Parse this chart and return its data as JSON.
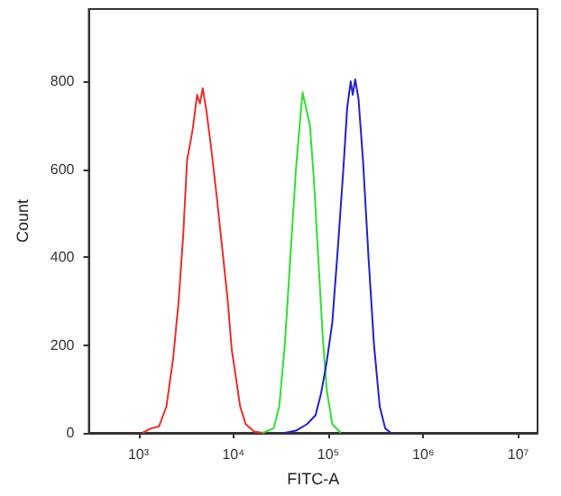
{
  "chart_data": {
    "type": "line",
    "xlabel": "FITC-A",
    "ylabel": "Count",
    "log": "x",
    "marker": "none",
    "line_style": "solid",
    "xlim": [
      300,
      16000000
    ],
    "xticks": [
      {
        "value": 1000,
        "label": "10³"
      },
      {
        "value": 10000,
        "label": "10⁴"
      },
      {
        "value": 100000,
        "label": "10⁵"
      },
      {
        "value": 1000000,
        "label": "10⁶"
      },
      {
        "value": 10000000,
        "label": "10⁷"
      }
    ],
    "ylim": [
      0,
      965
    ],
    "yticks": [
      0,
      200,
      400,
      600,
      800
    ],
    "series": [
      {
        "color": "#e8302a",
        "x": [
          1100,
          1350,
          1650,
          1970,
          2320,
          2650,
          2960,
          3250,
          3720,
          4150,
          4440,
          4750,
          5220,
          5820,
          6660,
          7630,
          8730,
          9600,
          10560,
          11780,
          13470,
          16500,
          20200
        ],
        "values": [
          0,
          10,
          15,
          60,
          170,
          300,
          450,
          620,
          690,
          770,
          750,
          785,
          730,
          650,
          540,
          420,
          300,
          190,
          130,
          60,
          20,
          3,
          0
        ]
      },
      {
        "color": "#33dd33",
        "x": [
          20200,
          26500,
          30400,
          34800,
          39800,
          45600,
          50800,
          53600,
          58200,
          64000,
          70300,
          78300,
          87300,
          95900,
          110000,
          135000
        ],
        "values": [
          0,
          10,
          60,
          200,
          400,
          600,
          720,
          775,
          740,
          700,
          580,
          400,
          220,
          100,
          20,
          0
        ]
      },
      {
        "color": "#2222cc",
        "x": [
          34800,
          45600,
          59700,
          73300,
          83900,
          95900,
          110000,
          126000,
          144000,
          158000,
          172000,
          181000,
          192000,
          208000,
          232000,
          265000,
          303000,
          348000,
          398000,
          456000
        ],
        "values": [
          0,
          5,
          20,
          40,
          90,
          160,
          250,
          420,
          600,
          740,
          800,
          770,
          805,
          760,
          620,
          400,
          200,
          60,
          10,
          0
        ]
      }
    ]
  }
}
